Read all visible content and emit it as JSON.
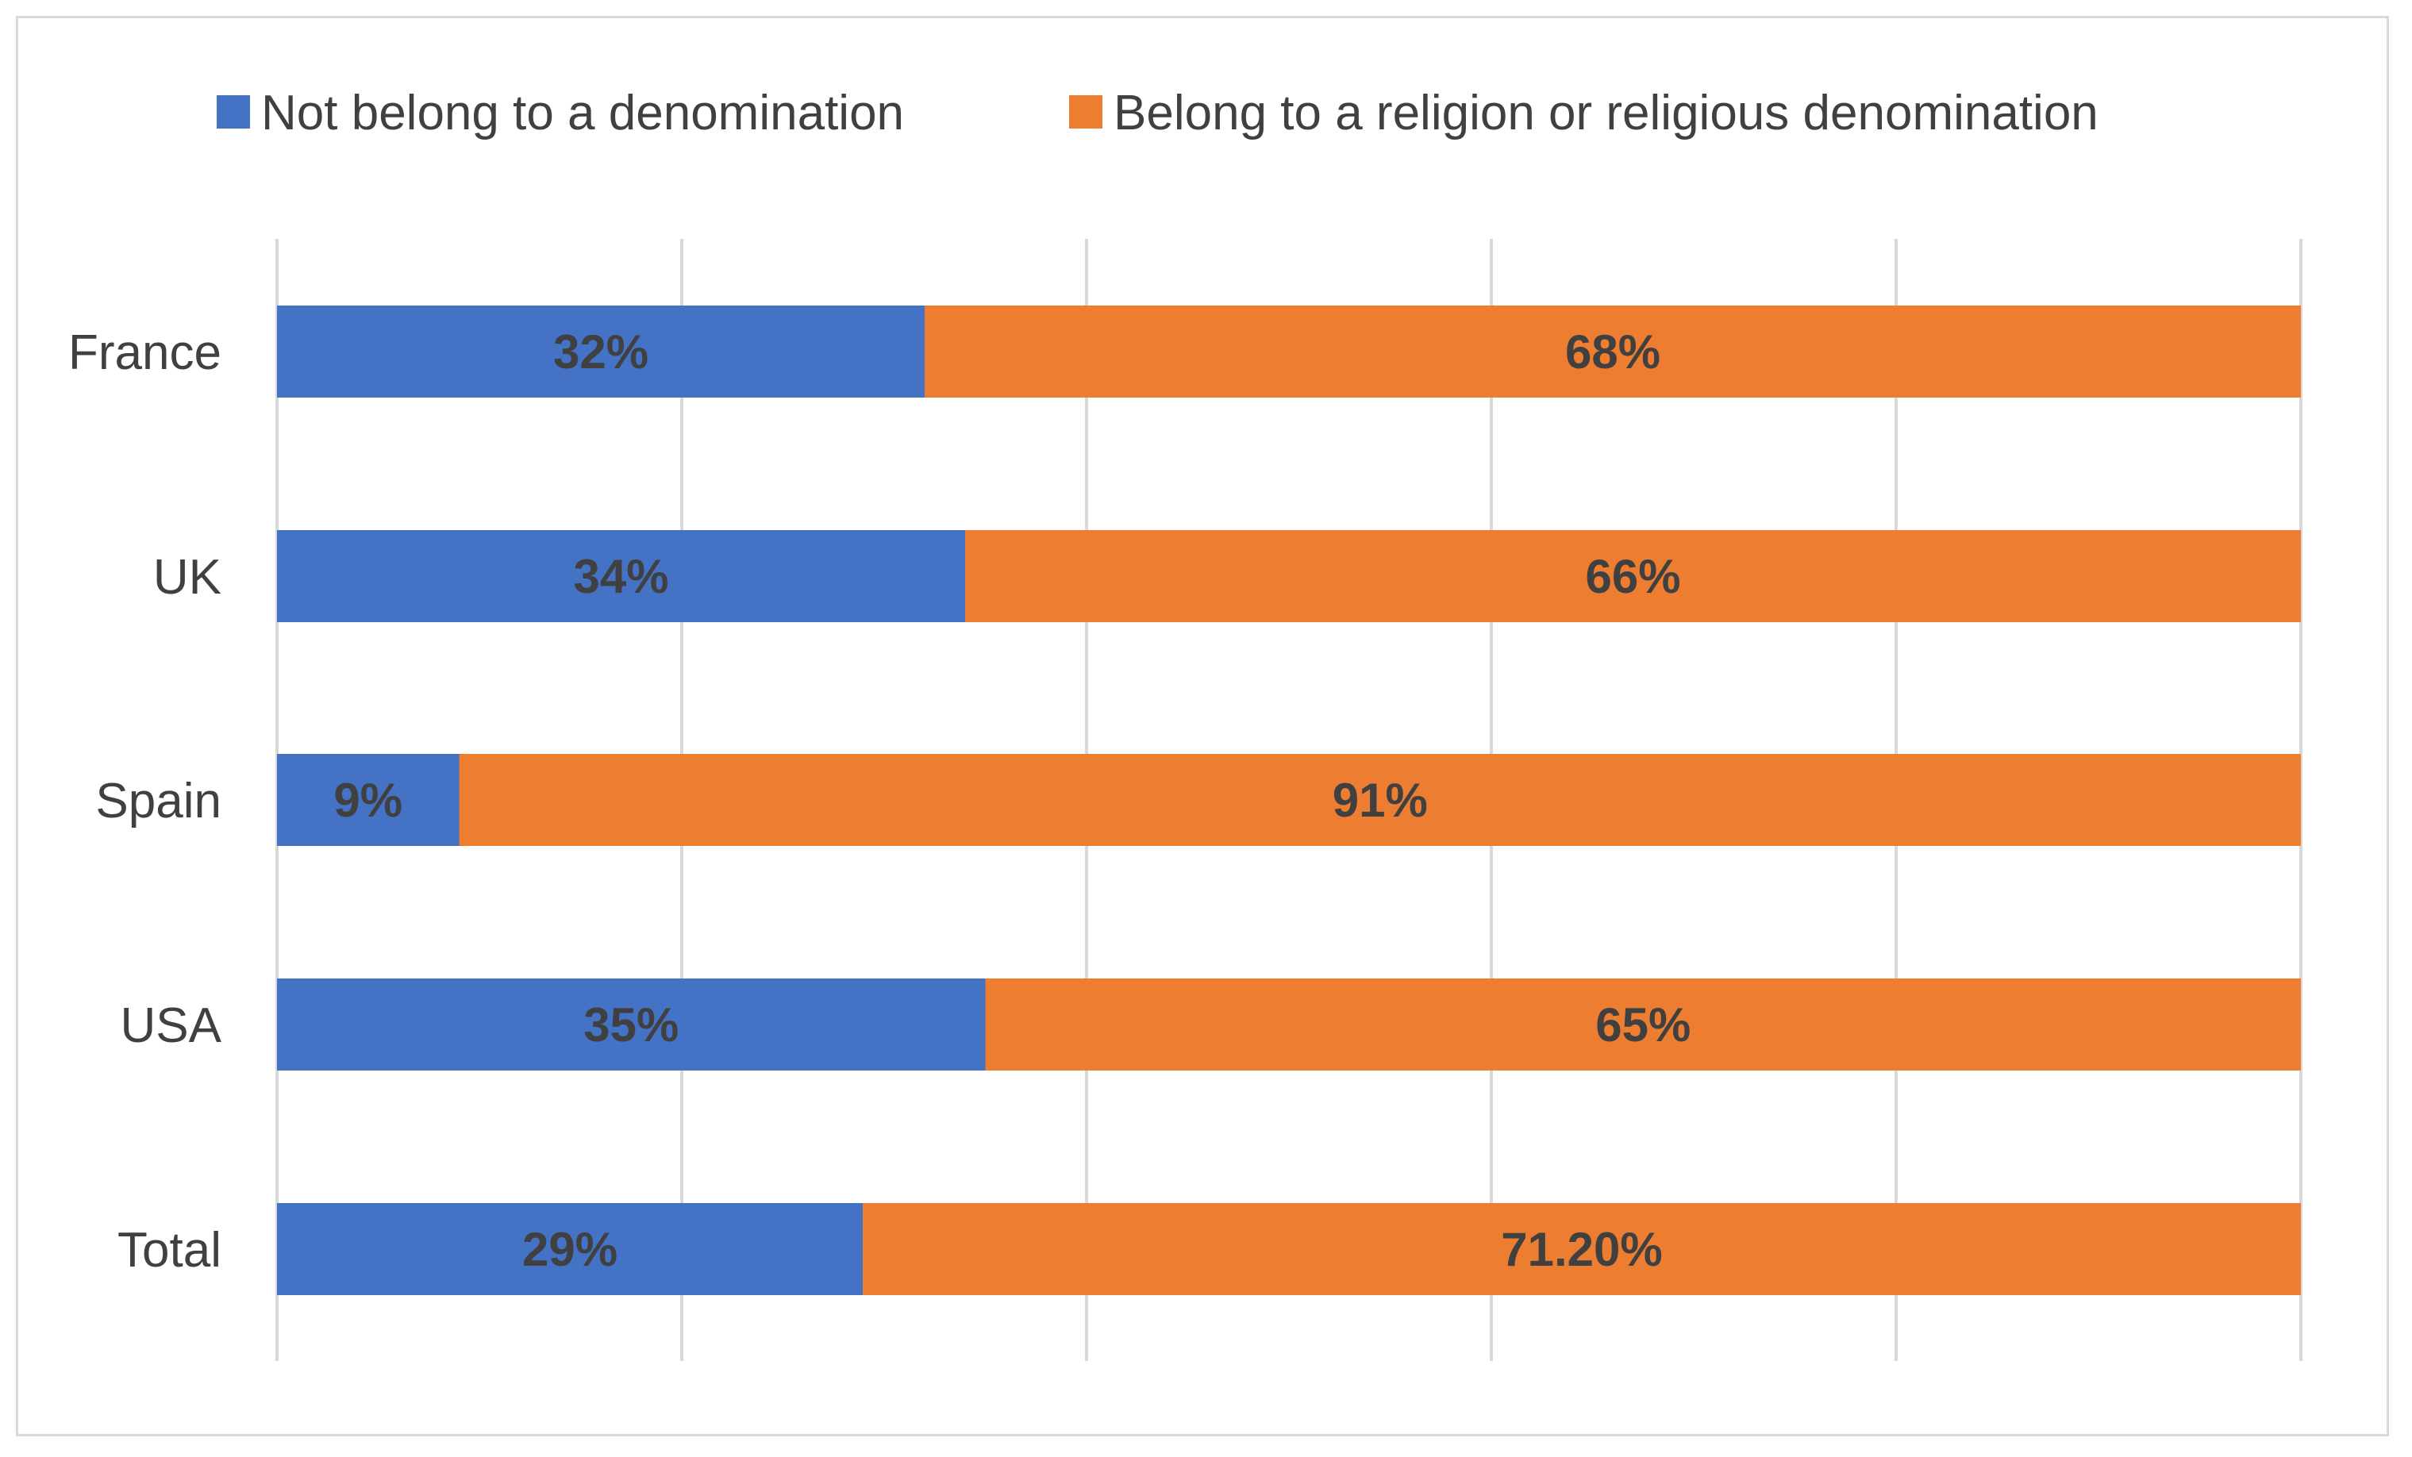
{
  "chart_data": {
    "type": "bar",
    "orientation": "horizontal",
    "stacked": "percent",
    "categories": [
      "France",
      "UK",
      "Spain",
      "USA",
      "Total"
    ],
    "series": [
      {
        "name": "Not belong to a denomination",
        "color": "#4472C4",
        "values": [
          32,
          34,
          9,
          35,
          29
        ],
        "labels": [
          "32%",
          "34%",
          "9%",
          "35%",
          "29%"
        ]
      },
      {
        "name": "Belong to a religion or religious denomination",
        "color": "#ED7D31",
        "values": [
          68,
          66,
          91,
          65,
          71.2
        ],
        "labels": [
          "68%",
          "66%",
          "91%",
          "65%",
          "71.20%"
        ]
      }
    ],
    "xlim": [
      0,
      100
    ],
    "grid": true,
    "legend": "top",
    "title": "",
    "xlabel": "",
    "ylabel": ""
  }
}
